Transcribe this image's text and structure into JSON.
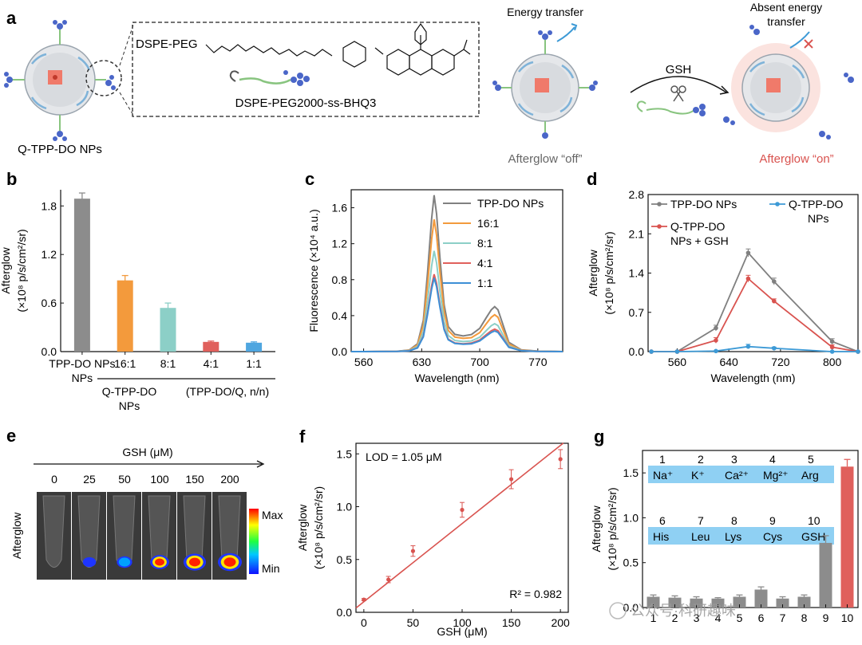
{
  "panel_letters": {
    "a": "a",
    "b": "b",
    "c": "c",
    "d": "d",
    "e": "e",
    "f": "f",
    "g": "g"
  },
  "schematic": {
    "np_label": "Q-TPP-DO NPs",
    "molecule_prefix": "DSPE-PEG",
    "molecule_name": "DSPE-PEG2000-ss-BHQ3",
    "energy_transfer": "Energy transfer",
    "absent_energy_transfer_1": "Absent energy",
    "absent_energy_transfer_2": "transfer",
    "reagent": "GSH",
    "afterglow_off": "Afterglow “off”",
    "afterglow_on": "Afterglow “on”",
    "colors": {
      "off": "#666666",
      "on": "#d9534f",
      "core": "#f07a6a",
      "shell": "#cfd3d8",
      "quencher": "#4a66c8"
    }
  },
  "chart_data": [
    {
      "panel": "b",
      "type": "bar",
      "ylabel_line1": "Afterglow",
      "ylabel_line2": "(×10⁸ p/s/cm²/sr)",
      "ylim": [
        0,
        2.0
      ],
      "yticks": [
        "0.0",
        "0.6",
        "1.2",
        "1.8"
      ],
      "ytick_values": [
        0,
        0.6,
        1.2,
        1.8
      ],
      "categories": [
        "TPP-DO NPs",
        "16:1",
        "8:1",
        "4:1",
        "1:1"
      ],
      "category_line2": [
        "NPs",
        "",
        "",
        "",
        ""
      ],
      "values": [
        1.89,
        0.88,
        0.54,
        0.12,
        0.11
      ],
      "errors": [
        0.07,
        0.06,
        0.06,
        0.01,
        0.01
      ],
      "colors": [
        "#8c8c8c",
        "#f39a3c",
        "#8ccfc7",
        "#e0605c",
        "#4fa6e0"
      ],
      "group_label_1": "Q-TPP-DO",
      "group_label_2": "NPs",
      "group_label_3": "(TPP-DO/Q, n/n)"
    },
    {
      "panel": "c",
      "type": "line",
      "xlabel": "Wavelength (nm)",
      "ylabel": "Fluorescence (×10⁴ a.u.)",
      "xlim": [
        545,
        800
      ],
      "ylim": [
        0,
        1.8
      ],
      "xticks": [
        560,
        630,
        700,
        770
      ],
      "yticks": [
        0.0,
        0.4,
        0.8,
        1.2,
        1.6
      ],
      "ytick_labels": [
        "0.0",
        "0.4",
        "0.8",
        "1.2",
        "1.6"
      ],
      "x": [
        545,
        560,
        600,
        615,
        625,
        632,
        637,
        642,
        645,
        648,
        652,
        657,
        662,
        670,
        680,
        690,
        700,
        708,
        714,
        718,
        722,
        727,
        735,
        750,
        770,
        800
      ],
      "shape": [
        0,
        0,
        0.002,
        0.01,
        0.05,
        0.2,
        0.5,
        0.85,
        1.0,
        0.88,
        0.6,
        0.3,
        0.16,
        0.11,
        0.1,
        0.11,
        0.15,
        0.22,
        0.27,
        0.29,
        0.27,
        0.19,
        0.06,
        0.012,
        0.003,
        0
      ],
      "series": [
        {
          "name": "TPP-DO NPs",
          "color": "#808080",
          "peak": 1.74,
          "peak2": 0.5
        },
        {
          "name": "16:1",
          "color": "#f39a3c",
          "peak": 1.47,
          "peak2": 0.41
        },
        {
          "name": "8:1",
          "color": "#8ccfc7",
          "peak": 1.12,
          "peak2": 0.31
        },
        {
          "name": "4:1",
          "color": "#e0605c",
          "peak": 0.86,
          "peak2": 0.25
        },
        {
          "name": "1:1",
          "color": "#3d8fd6",
          "peak": 0.82,
          "peak2": 0.23
        }
      ]
    },
    {
      "panel": "d",
      "type": "line",
      "xlabel": "Wavelength (nm)",
      "ylabel_line1": "Afterglow",
      "ylabel_line2": "(×10⁸ p/s/cm²/sr)",
      "xlim": [
        515,
        840
      ],
      "ylim": [
        0,
        2.8
      ],
      "xticks": [
        560,
        640,
        720,
        800
      ],
      "yticks": [
        0.0,
        0.7,
        1.4,
        2.1,
        2.8
      ],
      "ytick_labels": [
        "0.0",
        "0.7",
        "1.4",
        "2.1",
        "2.8"
      ],
      "x": [
        520,
        560,
        620,
        670,
        710,
        800,
        840
      ],
      "series": [
        {
          "name": "TPP-DO NPs",
          "color": "#808080",
          "values": [
            0,
            0,
            0.42,
            1.76,
            1.25,
            0.18,
            0
          ],
          "errors": [
            0,
            0,
            0.05,
            0.07,
            0.06,
            0.05,
            0
          ]
        },
        {
          "name": "Q-TPP-DO NPs + GSH",
          "name_line1": "Q-TPP-DO",
          "name_line2": "NPs + GSH",
          "color": "#d9534f",
          "values": [
            0,
            0,
            0.2,
            1.3,
            0.9,
            0.08,
            0
          ],
          "errors": [
            0,
            0,
            0.05,
            0.06,
            0.04,
            0.04,
            0
          ]
        },
        {
          "name": "Q-TPP-DO NPs",
          "name_line1": "Q-TPP-DO",
          "name_line2": "NPs",
          "color": "#3d9ad6",
          "values": [
            0,
            0,
            0.01,
            0.09,
            0.06,
            0.0,
            0
          ],
          "errors": [
            0,
            0,
            0,
            0.04,
            0.02,
            0,
            0
          ]
        }
      ]
    },
    {
      "panel": "e",
      "type": "table",
      "title": "GSH (μM)",
      "side_label": "Afterglow",
      "concentrations": [
        "0",
        "25",
        "50",
        "100",
        "150",
        "200"
      ],
      "intensity": [
        0,
        0.25,
        0.4,
        0.65,
        0.9,
        1.0
      ],
      "colorbar_max": "Max",
      "colorbar_min": "Min"
    },
    {
      "panel": "f",
      "type": "scatter",
      "xlabel": "GSH (μM)",
      "ylabel_line1": "Afterglow",
      "ylabel_line2": "(×10⁸ p/s/cm²/sr)",
      "xlim": [
        -8,
        208
      ],
      "ylim": [
        0,
        1.6
      ],
      "xticks": [
        0,
        50,
        100,
        150,
        200
      ],
      "yticks": [
        0.0,
        0.5,
        1.0,
        1.5
      ],
      "ytick_labels": [
        "0.0",
        "0.5",
        "1.0",
        "1.5"
      ],
      "x": [
        0,
        25,
        50,
        100,
        150,
        200
      ],
      "y": [
        0.12,
        0.31,
        0.58,
        0.97,
        1.26,
        1.45
      ],
      "errors": [
        0.01,
        0.03,
        0.05,
        0.07,
        0.09,
        0.09
      ],
      "fit": {
        "slope": 0.0074,
        "intercept": 0.1,
        "x_range": [
          -8,
          203
        ]
      },
      "lod_text": "LOD = 1.05 μM",
      "r2_text": "R² = 0.982",
      "color": "#d9534f"
    },
    {
      "panel": "g",
      "type": "bar",
      "ylabel_line1": "Afterglow",
      "ylabel_line2": "(×10⁸ p/s/cm²/sr)",
      "ylim": [
        0,
        1.75
      ],
      "yticks": [
        0.0,
        0.5,
        1.0,
        1.5
      ],
      "ytick_labels": [
        "0.0",
        "0.5",
        "1.0",
        "1.5"
      ],
      "categories": [
        "1",
        "2",
        "3",
        "4",
        "5",
        "6",
        "7",
        "8",
        "9",
        "10"
      ],
      "values": [
        0.12,
        0.11,
        0.1,
        0.1,
        0.12,
        0.2,
        0.1,
        0.12,
        0.72,
        1.57
      ],
      "errors": [
        0.02,
        0.02,
        0.02,
        0.01,
        0.02,
        0.03,
        0.02,
        0.02,
        0.08,
        0.08
      ],
      "colors": [
        "#8c8c8c",
        "#8c8c8c",
        "#8c8c8c",
        "#8c8c8c",
        "#8c8c8c",
        "#8c8c8c",
        "#8c8c8c",
        "#8c8c8c",
        "#8c8c8c",
        "#e0605c"
      ],
      "legend_numbers": [
        "1",
        "2",
        "3",
        "4",
        "5",
        "6",
        "7",
        "8",
        "9",
        "10"
      ],
      "legend_species": [
        "Na⁺",
        "K⁺",
        "Ca²⁺",
        "Mg²⁺",
        "Arg",
        "His",
        "Leu",
        "Lys",
        "Cys",
        "GSH"
      ],
      "legend_box_color": "#8fd0f3",
      "watermark": "公众号·科研趣味"
    }
  ]
}
